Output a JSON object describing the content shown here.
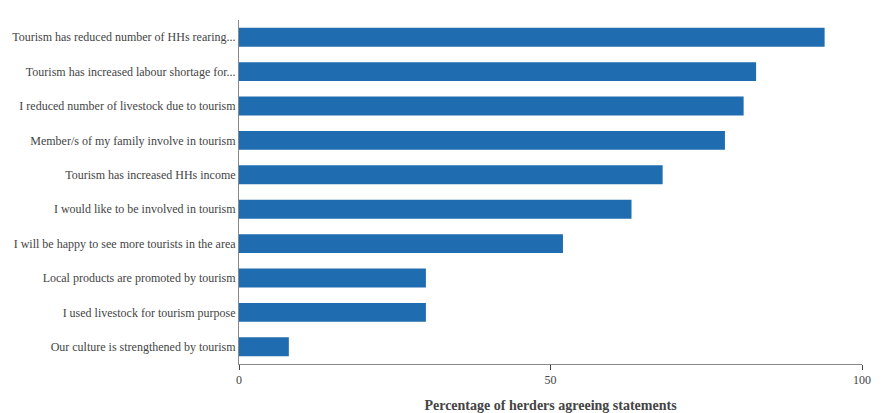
{
  "chart_data": {
    "type": "bar",
    "orientation": "horizontal",
    "categories": [
      "Our culture is strengthened by tourism",
      "I used livestock for tourism purpose",
      "Local products are promoted by tourism",
      "I will be happy to see more tourists in the area",
      "I would like to be involved in tourism",
      "Tourism has increased HHs income",
      "Member/s of my family involve in tourism",
      "I reduced number of livestock due to tourism",
      "Tourism has increased labour shortage for...",
      "Tourism has reduced number of HHs rearing..."
    ],
    "values": [
      8,
      30,
      30,
      52,
      63,
      68,
      78,
      81,
      83,
      94
    ],
    "color": "#1F6CB0",
    "xlabel": "Percentage of herders agreeing statements",
    "xlim": [
      0,
      100
    ],
    "xticks": [
      0,
      50,
      100
    ],
    "grid": false
  }
}
